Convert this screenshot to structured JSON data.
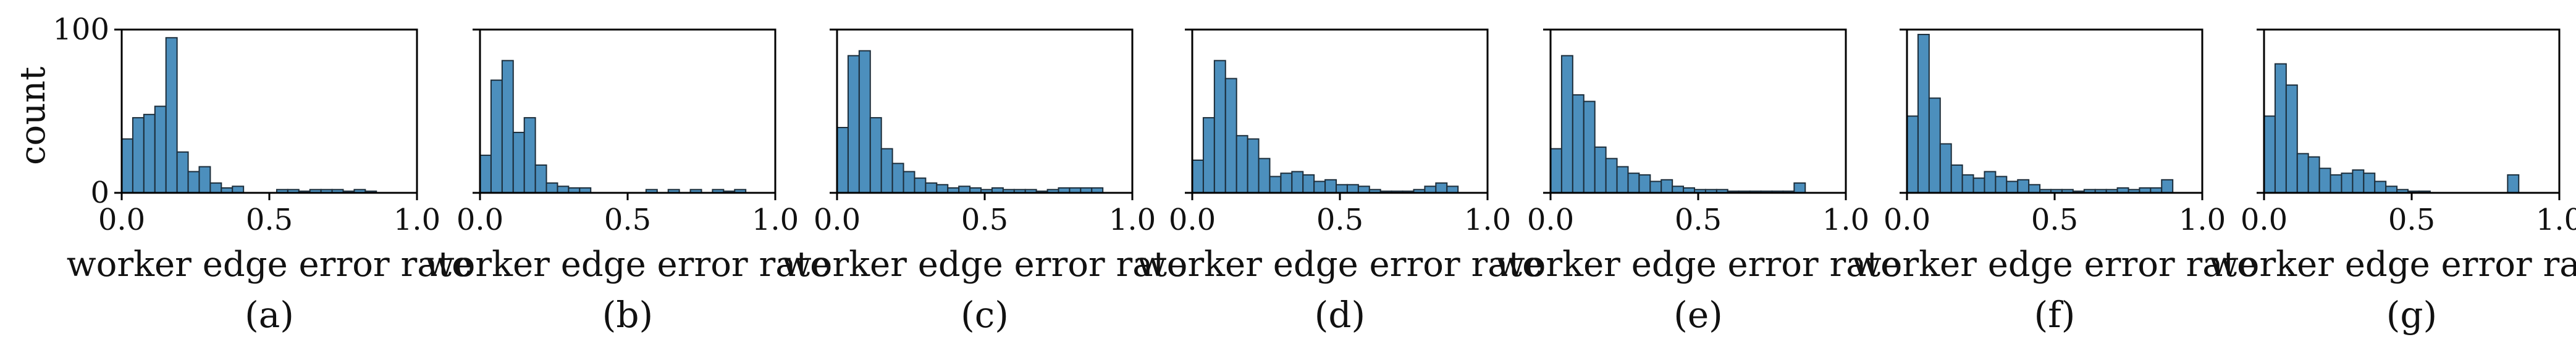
{
  "figure": {
    "ylabel": "count",
    "xlabel": "worker edge error rate",
    "x_ticks": [
      "0.0",
      "0.5",
      "1.0"
    ],
    "y_ticks": [
      "0",
      "100"
    ]
  },
  "colors": {
    "bar_fill": "#4c8fbd",
    "bar_edge": "#1c2d3a"
  },
  "chart_data": [
    {
      "type": "bar",
      "caption": "(a)",
      "xlim": [
        0,
        1
      ],
      "ylim": [
        0,
        100
      ],
      "bin_width": 0.0375,
      "bin_starts": [
        0.0,
        0.0375,
        0.075,
        0.1125,
        0.15,
        0.1875,
        0.225,
        0.2625,
        0.3,
        0.3375,
        0.375,
        0.4125,
        0.45,
        0.4875,
        0.525,
        0.5625,
        0.6,
        0.6375,
        0.675,
        0.7125,
        0.75,
        0.7875,
        0.825,
        0.8625
      ],
      "values": [
        33,
        46,
        48,
        53,
        95,
        25,
        13,
        16,
        6,
        3,
        4,
        0,
        0,
        0,
        2,
        2,
        1,
        2,
        2,
        2,
        1,
        2,
        1,
        0
      ]
    },
    {
      "type": "bar",
      "caption": "(b)",
      "xlim": [
        0,
        1
      ],
      "ylim": [
        0,
        100
      ],
      "bin_width": 0.0375,
      "bin_starts": [
        0.0,
        0.0375,
        0.075,
        0.1125,
        0.15,
        0.1875,
        0.225,
        0.2625,
        0.3,
        0.3375,
        0.375,
        0.4125,
        0.45,
        0.4875,
        0.525,
        0.5625,
        0.6,
        0.6375,
        0.675,
        0.7125,
        0.75,
        0.7875,
        0.825,
        0.8625
      ],
      "values": [
        23,
        69,
        81,
        37,
        46,
        17,
        6,
        4,
        3,
        3,
        0,
        0,
        0,
        0,
        0,
        2,
        0,
        2,
        0,
        2,
        0,
        2,
        1,
        2
      ]
    },
    {
      "type": "bar",
      "caption": "(c)",
      "xlim": [
        0,
        1
      ],
      "ylim": [
        0,
        100
      ],
      "bin_width": 0.0375,
      "bin_starts": [
        0.0,
        0.0375,
        0.075,
        0.1125,
        0.15,
        0.1875,
        0.225,
        0.2625,
        0.3,
        0.3375,
        0.375,
        0.4125,
        0.45,
        0.4875,
        0.525,
        0.5625,
        0.6,
        0.6375,
        0.675,
        0.7125,
        0.75,
        0.7875,
        0.825,
        0.8625
      ],
      "values": [
        40,
        84,
        87,
        46,
        27,
        18,
        13,
        9,
        6,
        5,
        3,
        4,
        3,
        2,
        3,
        2,
        2,
        2,
        1,
        2,
        3,
        3,
        3,
        3
      ]
    },
    {
      "type": "bar",
      "caption": "(d)",
      "xlim": [
        0,
        1
      ],
      "ylim": [
        0,
        100
      ],
      "bin_width": 0.0375,
      "bin_starts": [
        0.0,
        0.0375,
        0.075,
        0.1125,
        0.15,
        0.1875,
        0.225,
        0.2625,
        0.3,
        0.3375,
        0.375,
        0.4125,
        0.45,
        0.4875,
        0.525,
        0.5625,
        0.6,
        0.6375,
        0.675,
        0.7125,
        0.75,
        0.7875,
        0.825,
        0.8625
      ],
      "values": [
        20,
        46,
        81,
        70,
        35,
        33,
        21,
        10,
        12,
        13,
        11,
        7,
        8,
        5,
        5,
        4,
        2,
        1,
        1,
        1,
        2,
        4,
        6,
        4
      ]
    },
    {
      "type": "bar",
      "caption": "(e)",
      "xlim": [
        0,
        1
      ],
      "ylim": [
        0,
        100
      ],
      "bin_width": 0.0375,
      "bin_starts": [
        0.0,
        0.0375,
        0.075,
        0.1125,
        0.15,
        0.1875,
        0.225,
        0.2625,
        0.3,
        0.3375,
        0.375,
        0.4125,
        0.45,
        0.4875,
        0.525,
        0.5625,
        0.6,
        0.6375,
        0.675,
        0.7125,
        0.75,
        0.7875,
        0.825,
        0.8625
      ],
      "values": [
        27,
        84,
        60,
        56,
        28,
        21,
        16,
        12,
        11,
        7,
        8,
        4,
        3,
        2,
        2,
        2,
        1,
        1,
        1,
        1,
        1,
        1,
        6,
        0
      ]
    },
    {
      "type": "bar",
      "caption": "(f)",
      "xlim": [
        0,
        1
      ],
      "ylim": [
        0,
        100
      ],
      "bin_width": 0.0375,
      "bin_starts": [
        0.0,
        0.0375,
        0.075,
        0.1125,
        0.15,
        0.1875,
        0.225,
        0.2625,
        0.3,
        0.3375,
        0.375,
        0.4125,
        0.45,
        0.4875,
        0.525,
        0.5625,
        0.6,
        0.6375,
        0.675,
        0.7125,
        0.75,
        0.7875,
        0.825,
        0.8625
      ],
      "values": [
        47,
        97,
        58,
        30,
        17,
        11,
        9,
        13,
        10,
        7,
        8,
        5,
        2,
        2,
        2,
        1,
        2,
        2,
        2,
        3,
        2,
        3,
        3,
        8
      ]
    },
    {
      "type": "bar",
      "caption": "(g)",
      "xlim": [
        0,
        1
      ],
      "ylim": [
        0,
        100
      ],
      "bin_width": 0.0375,
      "bin_starts": [
        0.0,
        0.0375,
        0.075,
        0.1125,
        0.15,
        0.1875,
        0.225,
        0.2625,
        0.3,
        0.3375,
        0.375,
        0.4125,
        0.45,
        0.4875,
        0.525,
        0.5625,
        0.6,
        0.6375,
        0.675,
        0.7125,
        0.75,
        0.7875,
        0.825,
        0.8625
      ],
      "values": [
        47,
        79,
        66,
        24,
        22,
        15,
        11,
        12,
        14,
        12,
        7,
        4,
        2,
        1,
        1,
        0,
        0,
        0,
        0,
        0,
        0,
        0,
        11,
        0
      ]
    }
  ]
}
